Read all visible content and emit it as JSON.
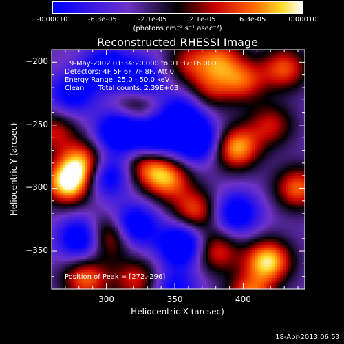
{
  "chart_data": {
    "type": "heatmap",
    "title": "Reconstructed RHESSI Image",
    "xlabel": "Heliocentric X (arcsec)",
    "ylabel": "Heliocentric Y (arcsec)",
    "xlim": [
      260,
      445
    ],
    "ylim": [
      -380,
      -190
    ],
    "x_ticks": [
      300,
      350,
      400
    ],
    "y_ticks": [
      -200,
      -250,
      -300,
      -350
    ],
    "colorbar": {
      "range": [
        -0.0001,
        0.0001
      ],
      "tick_labels": [
        "-0.00010",
        "-6.3e-05",
        "-2.1e-05",
        "2.1e-05",
        "6.3e-05",
        "0.00010"
      ],
      "unit_label": "(photons cm⁻² s⁻¹ asec⁻²)"
    },
    "annotations": {
      "time_range": "9-May-2002 01:34:20.000 to 01:37:16.000",
      "detectors": "Detectors: 4F 5F 6F 7F 8F, Att 0",
      "energy": "Energy Range: 25.0 - 50.0 keV",
      "clean_label": "Clean",
      "total_counts": "Total counts: 2.39E+03",
      "peak": "Position of Peak = [272,-296]"
    },
    "blobs": [
      {
        "x": 300,
        "y": -205,
        "v": -0.7
      },
      {
        "x": 325,
        "y": -215,
        "v": -0.8
      },
      {
        "x": 310,
        "y": -255,
        "v": -0.9
      },
      {
        "x": 336,
        "y": -260,
        "v": -0.8
      },
      {
        "x": 366,
        "y": -262,
        "v": -0.9
      },
      {
        "x": 355,
        "y": -240,
        "v": -0.6
      },
      {
        "x": 300,
        "y": -290,
        "v": -0.7
      },
      {
        "x": 320,
        "y": -330,
        "v": -0.8
      },
      {
        "x": 282,
        "y": -340,
        "v": -0.8
      },
      {
        "x": 355,
        "y": -345,
        "v": -0.9
      },
      {
        "x": 275,
        "y": -225,
        "v": -0.6
      },
      {
        "x": 395,
        "y": -320,
        "v": -0.7
      },
      {
        "x": 350,
        "y": -380,
        "v": -0.5
      },
      {
        "x": 400,
        "y": -215,
        "v": 0.6
      },
      {
        "x": 383,
        "y": -198,
        "v": 0.6
      },
      {
        "x": 420,
        "y": -250,
        "v": 0.5
      },
      {
        "x": 272,
        "y": -296,
        "v": 1.0
      },
      {
        "x": 283,
        "y": -280,
        "v": 0.8
      },
      {
        "x": 345,
        "y": -293,
        "v": 0.7
      },
      {
        "x": 395,
        "y": -268,
        "v": 0.85
      },
      {
        "x": 330,
        "y": -282,
        "v": 0.6
      },
      {
        "x": 302,
        "y": -338,
        "v": 0.75
      },
      {
        "x": 285,
        "y": -372,
        "v": 0.7
      },
      {
        "x": 418,
        "y": -358,
        "v": 0.95
      },
      {
        "x": 380,
        "y": -350,
        "v": 0.6
      },
      {
        "x": 405,
        "y": -385,
        "v": 0.7
      },
      {
        "x": 365,
        "y": -318,
        "v": 0.65
      },
      {
        "x": 322,
        "y": -232,
        "v": 0.55
      },
      {
        "x": 375,
        "y": -222,
        "v": 0.45
      },
      {
        "x": 360,
        "y": -200,
        "v": 0.45
      },
      {
        "x": 440,
        "y": -300,
        "v": 0.7
      },
      {
        "x": 430,
        "y": -205,
        "v": 0.65
      },
      {
        "x": 322,
        "y": -373,
        "v": 0.55
      },
      {
        "x": 262,
        "y": -255,
        "v": 0.5
      }
    ]
  },
  "timestamp": "18-Apr-2013 06:53"
}
